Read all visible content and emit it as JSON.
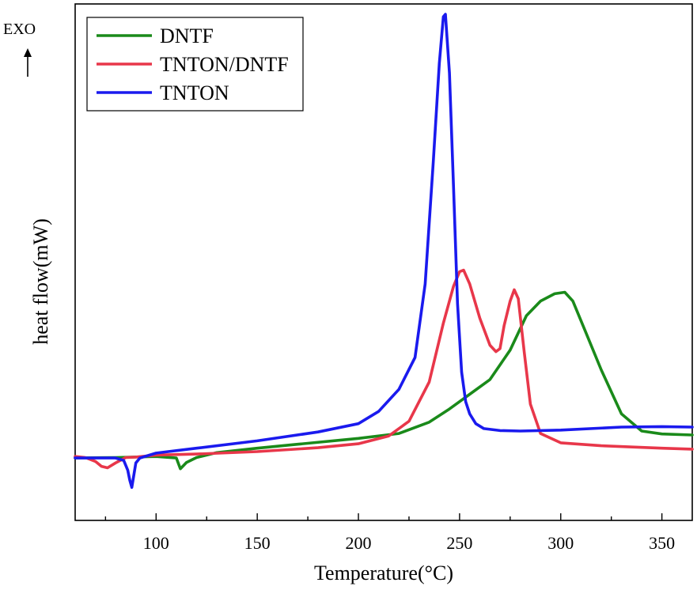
{
  "chart_data": {
    "type": "line",
    "xlabel": "Temperature(°C)",
    "ylabel": "heat flow(mW)",
    "exo_label": "EXO",
    "xlim": [
      60,
      365
    ],
    "ylim": [
      0,
      100
    ],
    "x_ticks": [
      100,
      150,
      200,
      250,
      300,
      350
    ],
    "x_tick_labels": [
      "100",
      "150",
      "200",
      "250",
      "300",
      "350"
    ],
    "y_ticks_shown": false,
    "legend_position": "top-left",
    "series": [
      {
        "name": "DNTF",
        "color": "#1a8a1a",
        "x": [
          60,
          80,
          100,
          110,
          112,
          115,
          120,
          130,
          150,
          170,
          200,
          220,
          235,
          245,
          255,
          265,
          275,
          283,
          290,
          297,
          302,
          306,
          312,
          320,
          330,
          340,
          350,
          365
        ],
        "y": [
          9.5,
          9.6,
          9.8,
          9.5,
          7.3,
          8.6,
          9.6,
          10.6,
          11.5,
          12.3,
          13.5,
          14.5,
          16.8,
          19.5,
          22.5,
          25.5,
          31.5,
          38.5,
          41.5,
          43.0,
          43.3,
          41.5,
          35.5,
          27.5,
          18.5,
          15.0,
          14.4,
          14.2
        ]
      },
      {
        "name": "TNTON/DNTF",
        "color": "#e8374a",
        "x": [
          60,
          65,
          70,
          73,
          76,
          80,
          85,
          90,
          100,
          120,
          150,
          180,
          200,
          215,
          225,
          235,
          242,
          247,
          250,
          252,
          255,
          260,
          265,
          268,
          270,
          272,
          275,
          277,
          279,
          282,
          285,
          290,
          300,
          320,
          350,
          365
        ],
        "y": [
          9.8,
          9.6,
          8.8,
          7.8,
          7.5,
          8.5,
          9.6,
          9.7,
          10.1,
          10.3,
          10.8,
          11.6,
          12.4,
          14.0,
          17.0,
          25.0,
          37.0,
          44.5,
          47.5,
          47.8,
          45.0,
          38.0,
          32.5,
          31.2,
          31.8,
          36.5,
          41.5,
          43.8,
          42.0,
          31.0,
          20.5,
          14.5,
          12.6,
          12.0,
          11.5,
          11.3
        ]
      },
      {
        "name": "TNTON",
        "color": "#1a1aee",
        "x": [
          60,
          80,
          84,
          86,
          87,
          88,
          90,
          92,
          100,
          120,
          150,
          180,
          200,
          210,
          220,
          228,
          233,
          237,
          240,
          242,
          243,
          245,
          247,
          249,
          251,
          253,
          255,
          258,
          262,
          270,
          280,
          300,
          330,
          350,
          365
        ],
        "y": [
          9.5,
          9.5,
          9.0,
          7.0,
          5.0,
          3.5,
          8.5,
          9.5,
          10.5,
          11.5,
          13.0,
          14.8,
          16.5,
          19.0,
          23.5,
          30.0,
          45.0,
          70.0,
          90.0,
          99.5,
          100.0,
          88.0,
          65.0,
          41.0,
          27.0,
          21.0,
          18.5,
          16.5,
          15.5,
          15.1,
          15.0,
          15.2,
          15.8,
          15.9,
          15.8
        ]
      }
    ]
  }
}
